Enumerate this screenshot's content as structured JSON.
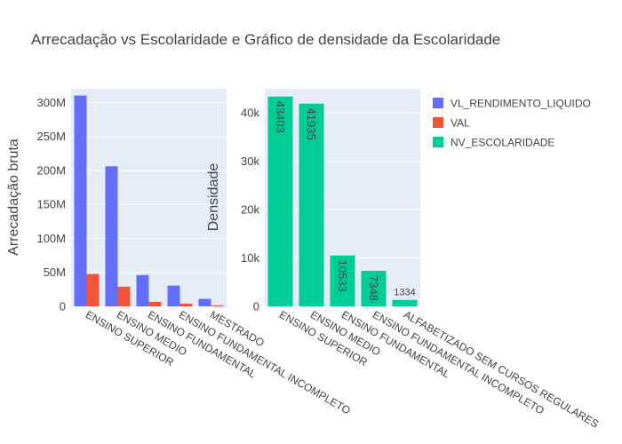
{
  "title": "Arrecadação vs Escolaridade e Gráfico de densidade da Escolaridade",
  "colors": {
    "plot_bg": "#E5ECF6",
    "grid": "#FFFFFF",
    "text": "#444444",
    "title": "#444444"
  },
  "legend": {
    "position": "top-right",
    "items": [
      {
        "label": "VL_RENDIMENTO_LIQUIDO",
        "color": "#636EFA"
      },
      {
        "label": "VAL",
        "color": "#EF553B"
      },
      {
        "label": "NV_ESCOLARIDADE",
        "color": "#00CC96"
      }
    ]
  },
  "chart_data": [
    {
      "type": "bar",
      "barmode": "group",
      "ylabel": "Arrecadação bruta",
      "ylim": [
        0,
        320000000
      ],
      "yticks": [
        0,
        50000000,
        100000000,
        150000000,
        200000000,
        250000000,
        300000000
      ],
      "ytick_labels": [
        "0",
        "50M",
        "100M",
        "150M",
        "200M",
        "250M",
        "300M"
      ],
      "grid": true,
      "categories": [
        "ENSINO SUPERIOR",
        "ENSINO MEDIO",
        "ENSINO FUNDAMENTAL",
        "ENSINO FUNDAMENTAL INCOMPLETO",
        "MESTRADO"
      ],
      "series": [
        {
          "name": "VL_RENDIMENTO_LIQUIDO",
          "color": "#636EFA",
          "values": [
            310000000,
            206000000,
            46000000,
            30500000,
            11000000
          ]
        },
        {
          "name": "VAL",
          "color": "#EF553B",
          "values": [
            47500000,
            29000000,
            6500000,
            4000000,
            1500000
          ]
        }
      ]
    },
    {
      "type": "bar",
      "ylabel": "Densidade",
      "ylim": [
        0,
        45000
      ],
      "yticks": [
        0,
        10000,
        20000,
        30000,
        40000
      ],
      "ytick_labels": [
        "0",
        "10k",
        "20k",
        "30k",
        "40k"
      ],
      "grid": true,
      "categories": [
        "ENSINO SUPERIOR",
        "ENSINO MEDIO",
        "ENSINO FUNDAMENTAL",
        "ENSINO FUNDAMENTAL INCOMPLETO",
        "ALFABETIZADO SEM CURSOS REGULARES"
      ],
      "series": [
        {
          "name": "NV_ESCOLARIDADE",
          "color": "#00CC96",
          "values": [
            43403,
            41935,
            10533,
            7348,
            1334
          ]
        }
      ],
      "data_labels": [
        "43403",
        "41935",
        "10533",
        "7348",
        "1334"
      ]
    }
  ]
}
